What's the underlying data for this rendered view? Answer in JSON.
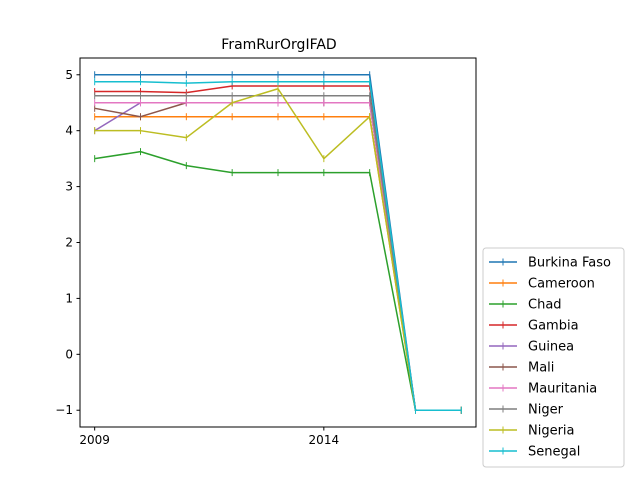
{
  "chart_data": {
    "type": "line",
    "title": "FramRurOrgIFAD",
    "xlabel": "",
    "ylabel": "",
    "x": [
      2009,
      2010,
      2011,
      2012,
      2013,
      2014,
      2015,
      2016,
      2017
    ],
    "xticks": [
      2009,
      2014
    ],
    "yticks": [
      -1,
      0,
      1,
      2,
      3,
      4,
      5
    ],
    "xlim": [
      2008.68,
      2017.32
    ],
    "ylim": [
      -1.3,
      5.3
    ],
    "grid": false,
    "legend_position": "lower-right outside",
    "series": [
      {
        "name": "Burkina Faso",
        "color": "#1f77b4",
        "values": [
          5,
          5,
          5,
          5,
          5,
          5,
          5,
          -1,
          -1
        ]
      },
      {
        "name": "Cameroon",
        "color": "#ff7f0e",
        "values": [
          4.25,
          4.25,
          4.25,
          4.25,
          4.25,
          4.25,
          4.25,
          -1,
          -1
        ]
      },
      {
        "name": "Chad",
        "color": "#2ca02c",
        "values": [
          3.5,
          3.625,
          3.375,
          3.25,
          3.25,
          3.25,
          3.25,
          -1,
          -1
        ]
      },
      {
        "name": "Gambia",
        "color": "#d62728",
        "values": [
          4.7,
          4.7,
          4.68,
          4.8,
          4.8,
          4.8,
          4.8,
          -1,
          -1
        ]
      },
      {
        "name": "Guinea",
        "color": "#9467bd",
        "values": [
          4,
          4.5,
          4.5,
          4.5,
          4.5,
          4.5,
          4.5,
          -1,
          -1
        ]
      },
      {
        "name": "Mali",
        "color": "#8c564b",
        "values": [
          4.4,
          4.25,
          4.5,
          4.5,
          4.5,
          4.5,
          4.5,
          -1,
          -1
        ]
      },
      {
        "name": "Mauritania",
        "color": "#e377c2",
        "values": [
          4.5,
          4.5,
          4.5,
          4.5,
          4.5,
          4.5,
          4.5,
          -1,
          -1
        ]
      },
      {
        "name": "Niger",
        "color": "#7f7f7f",
        "values": [
          4.625,
          4.625,
          4.625,
          4.625,
          4.625,
          4.625,
          4.625,
          -1,
          -1
        ]
      },
      {
        "name": "Nigeria",
        "color": "#bcbd22",
        "values": [
          4,
          4,
          3.875,
          4.5,
          4.75,
          3.5,
          4.25,
          -1,
          -1
        ]
      },
      {
        "name": "Senegal",
        "color": "#17becf",
        "values": [
          4.875,
          4.875,
          4.85,
          4.875,
          4.875,
          4.875,
          4.875,
          -1,
          -1
        ]
      }
    ]
  }
}
